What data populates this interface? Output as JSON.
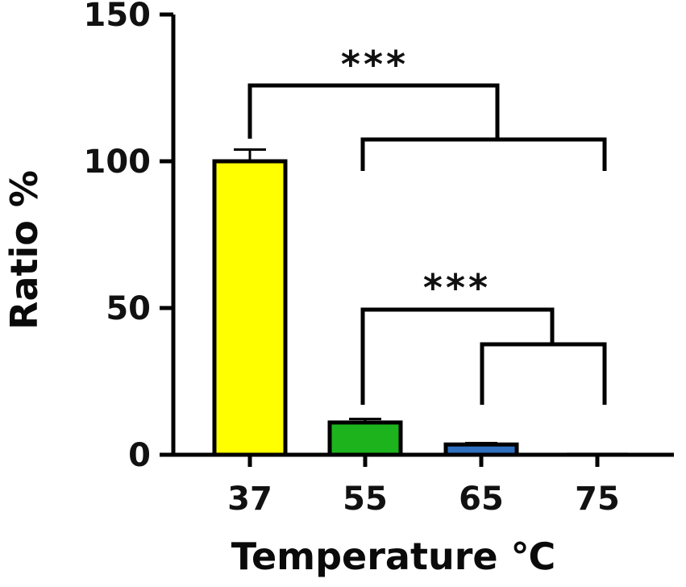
{
  "chart_data": {
    "type": "bar",
    "categories": [
      "37",
      "55",
      "65",
      "75"
    ],
    "values": [
      100,
      11,
      3.5,
      0
    ],
    "errors": [
      4,
      1.2,
      0.5,
      0
    ],
    "colors": [
      "#ffff00",
      "#1db31d",
      "#2f6fbf",
      "#d9d9d9"
    ],
    "title": "",
    "xlabel": "Temperature ℃",
    "ylabel": "Ratio %",
    "ylim": [
      0,
      150
    ],
    "yticks": [
      "0",
      "50",
      "100",
      "150"
    ],
    "grid": false,
    "legend": "none",
    "significance": [
      {
        "label": "***",
        "group_a": [
          "37"
        ],
        "group_b": [
          "55",
          "75"
        ]
      },
      {
        "label": "***",
        "group_a": [
          "55"
        ],
        "group_b": [
          "65",
          "75"
        ]
      }
    ]
  }
}
